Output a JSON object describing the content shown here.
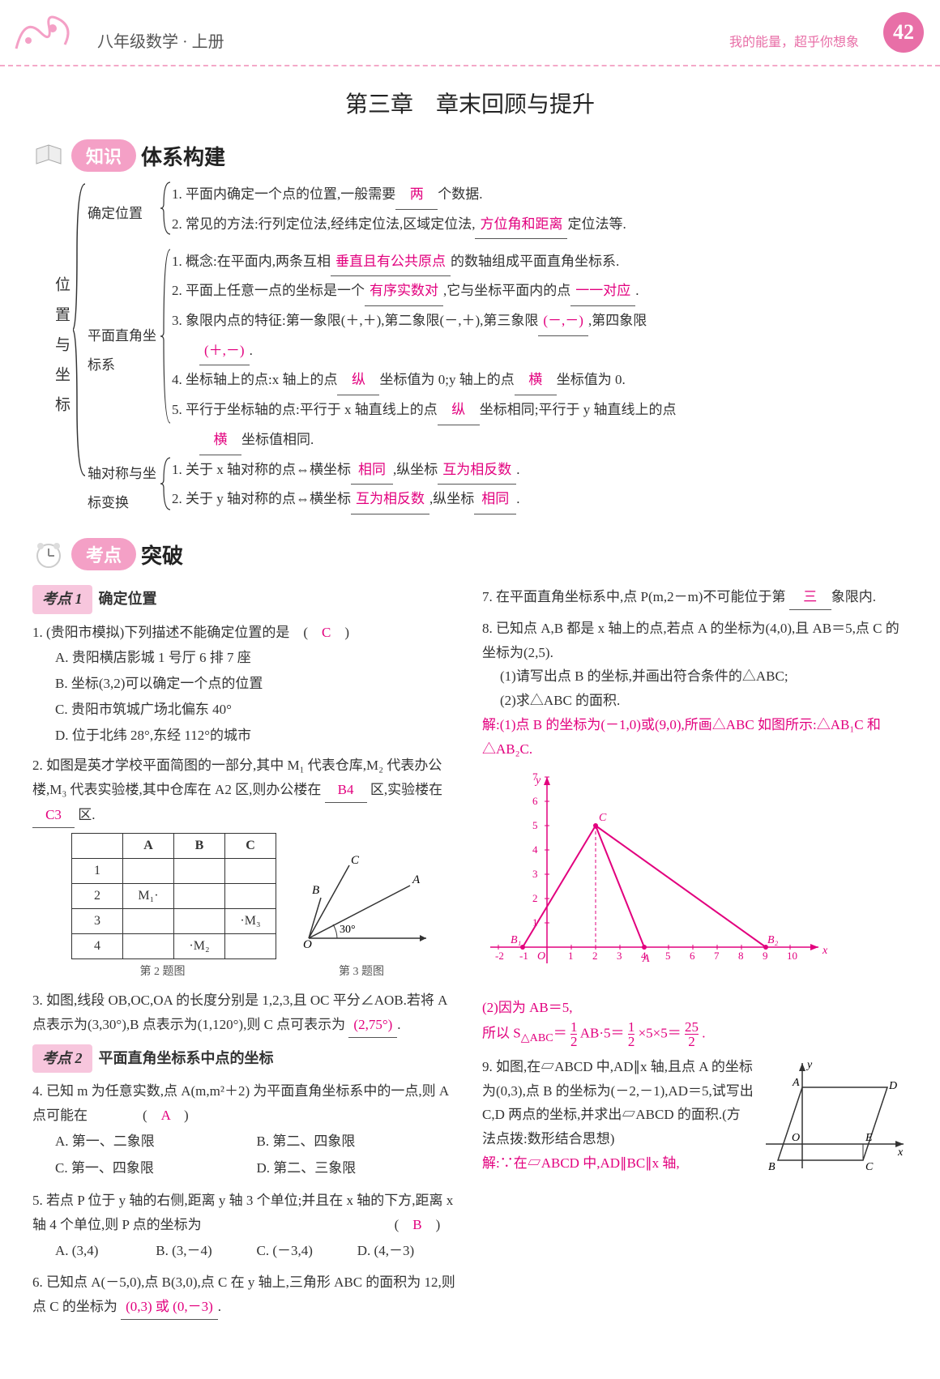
{
  "header": {
    "subject": "八年级数学 · 上册",
    "quote": "我的能量，超乎你想象",
    "page_num": "42"
  },
  "main_title": "第三章　章末回顾与提升",
  "section1": {
    "badge": "知识",
    "text": "体系构建"
  },
  "concept": {
    "root": "位置与坐标",
    "c1_label": "确定位置",
    "c1_1_prefix": "1. 平面内确定一个点的位置,一般需要",
    "c1_1_ans": "两",
    "c1_1_suffix": "个数据.",
    "c1_2_prefix": "2. 常见的方法:行列定位法,经纬定位法,区域定位法,",
    "c1_2_ans": "方位角和距离",
    "c1_2_suffix": "定位法等.",
    "c2_label": "平面直角坐标系",
    "c2_1_prefix": "1. 概念:在平面内,两条互相",
    "c2_1_ans": "垂直且有公共原点",
    "c2_1_suffix": "的数轴组成平面直角坐标系.",
    "c2_2_prefix": "2. 平面上任意一点的坐标是一个",
    "c2_2_ans": "有序实数对",
    "c2_2_mid": ",它与坐标平面内的点",
    "c2_2_ans2": "一一对应",
    "c2_2_suffix": ".",
    "c2_3_prefix": "3. 象限内点的特征:第一象限(＋,＋),第二象限(－,＋),第三象限",
    "c2_3_ans": "(－,－)",
    "c2_3_mid": ",第四象限",
    "c2_3_ans2": "(＋,－)",
    "c2_3_suffix": ".",
    "c2_4_prefix": "4. 坐标轴上的点:x 轴上的点",
    "c2_4_ans": "纵",
    "c2_4_mid": "坐标值为 0;y 轴上的点",
    "c2_4_ans2": "横",
    "c2_4_suffix": "坐标值为 0.",
    "c2_5_prefix": "5. 平行于坐标轴的点:平行于 x 轴直线上的点",
    "c2_5_ans": "纵",
    "c2_5_mid": "坐标相同;平行于 y 轴直线上的点",
    "c2_5_ans2": "横",
    "c2_5_suffix": "坐标值相同.",
    "c3_label": "轴对称与坐标变换",
    "c3_1_prefix": "1. 关于 x 轴对称的点⇔横坐标",
    "c3_1_ans": "相同",
    "c3_1_mid": ",纵坐标",
    "c3_1_ans2": "互为相反数",
    "c3_1_suffix": ".",
    "c3_2_prefix": "2. 关于 y 轴对称的点⇔横坐标",
    "c3_2_ans": "互为相反数",
    "c3_2_mid": ",纵坐标",
    "c3_2_ans2": "相同",
    "c3_2_suffix": "."
  },
  "section2": {
    "badge": "考点",
    "text": "突破"
  },
  "kp1": {
    "badge": "考点 1",
    "title": "确定位置"
  },
  "kp2": {
    "badge": "考点 2",
    "title": "平面直角坐标系中点的坐标"
  },
  "q1": {
    "stem": "1. (贵阳市模拟)下列描述不能确定位置的是　(　",
    "ans": "C",
    "stem_end": "　)",
    "A": "A. 贵阳横店影城 1 号厅 6 排 7 座",
    "B": "B. 坐标(3,2)可以确定一个点的位置",
    "C": "C. 贵阳市筑城广场北偏东 40°",
    "D": "D. 位于北纬 28°,东经 112°的城市"
  },
  "q2": {
    "stem1": "2. 如图是英才学校平面简图的一部分,其中 M₁ 代表仓库,M₂ 代表办公楼,M₃ 代表实验楼,其中仓库在 A2 区,则办公楼在",
    "ans1": "B4",
    "mid": "区,实验楼在",
    "ans2": "C3",
    "end": "区.",
    "table_cols": [
      "",
      "A",
      "B",
      "C"
    ],
    "rows": [
      [
        "1",
        "",
        "",
        ""
      ],
      [
        "2",
        "M₁·",
        "",
        ""
      ],
      [
        "3",
        "",
        "",
        "·M₃"
      ],
      [
        "4",
        "",
        "·M₂",
        ""
      ]
    ],
    "cap": "第 2 题图"
  },
  "q3": {
    "stem1": "3. 如图,线段 OB,OC,OA 的长度分别是 1,2,3,且 OC 平分∠AOB.若将 A 点表示为(3,30°),B 点表示为(1,120°),则 C 点可表示为",
    "ans": "(2,75°)",
    "end": ".",
    "cap": "第 3 题图",
    "labels": {
      "A": "A",
      "B": "B",
      "C": "C",
      "O": "O",
      "ang": "30°"
    }
  },
  "q4": {
    "stem": "4. 已知 m 为任意实数,点 A(m,m²＋2) 为平面直角坐标系中的一点,则 A 点可能在　　　　(　",
    "ans": "A",
    "stem_end": "　)",
    "A": "A. 第一、二象限",
    "B": "B. 第二、四象限",
    "C": "C. 第一、四象限",
    "D": "D. 第二、三象限"
  },
  "q5": {
    "stem": "5. 若点 P 位于 y 轴的右侧,距离 y 轴 3 个单位;并且在 x 轴的下方,距离 x 轴 4 个单位,则 P 点的坐标为　　　　　　　　　　　　　　(　",
    "ans": "B",
    "stem_end": "　)",
    "A": "A. (3,4)",
    "B": "B. (3,－4)",
    "C": "C. (－3,4)",
    "D": "D. (4,－3)"
  },
  "q6": {
    "stem": "6. 已知点 A(－5,0),点 B(3,0),点 C 在 y 轴上,三角形 ABC 的面积为 12,则点 C 的坐标为",
    "ans": "(0,3) 或 (0,－3)",
    "end": "."
  },
  "q7": {
    "stem": "7. 在平面直角坐标系中,点 P(m,2－m)不可能位于第",
    "ans": "三",
    "end": "象限内."
  },
  "q8": {
    "l1": "8. 已知点 A,B 都是 x 轴上的点,若点 A 的坐标为(4,0),且 AB＝5,点 C 的坐标为(2,5).",
    "l2": "(1)请写出点 B 的坐标,并画出符合条件的△ABC;",
    "l3": "(2)求△ABC 的面积.",
    "s1": "解:(1)点 B 的坐标为(－1,0)或(9,0),所画△ABC 如图所示:△AB₁C 和 △AB₂C.",
    "s2": "(2)因为 AB＝5,",
    "s3_a": "所以 S",
    "s3_sub": "△ABC",
    "s3_b": "＝",
    "s3_frac1n": "1",
    "s3_frac1d": "2",
    "s3_c": "AB·5＝",
    "s3_frac2n": "1",
    "s3_frac2d": "2",
    "s3_d": "×5×5＝",
    "s3_frac3n": "25",
    "s3_frac3d": "2",
    "s3_e": ".",
    "chart": {
      "xmin": -2,
      "xmax": 10,
      "ymin": -1,
      "ymax": 7,
      "xticks": [
        -2,
        -1,
        1,
        2,
        3,
        4,
        5,
        6,
        7,
        8,
        9,
        10
      ],
      "yticks": [
        1,
        2,
        3,
        4,
        5,
        6,
        7
      ],
      "points": {
        "B1": [
          -1,
          0
        ],
        "A": [
          4,
          0
        ],
        "B2": [
          9,
          0
        ],
        "C": [
          2,
          5
        ]
      },
      "line_color": "#e2007e",
      "axis_color": "#e2007e"
    }
  },
  "q9": {
    "l1": "9. 如图,在▱ABCD 中,AD∥x 轴,且点 A 的坐标为(0,3),点 B 的坐标为(－2,－1),AD＝5,试写出 C,D 两点的坐标,并求出▱ABCD 的面积.(方法点拨:数形结合思想)",
    "s1": "解:∵在▱ABCD 中,AD∥BC∥x 轴,",
    "labels": {
      "A": "A",
      "B": "B",
      "C": "C",
      "D": "D",
      "E": "E",
      "O": "O",
      "x": "x",
      "y": "y"
    }
  }
}
